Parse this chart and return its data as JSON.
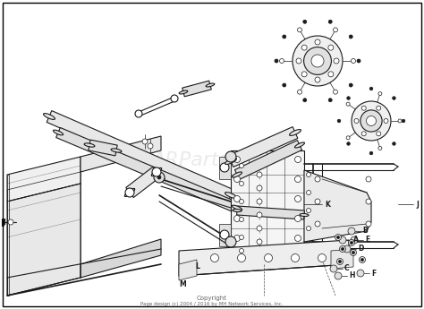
{
  "background_color": "#ffffff",
  "border_color": "#000000",
  "watermark_text": "ARParts",
  "copyright_line1": "Copyright",
  "copyright_line2": "Page design (c) 2004 / 2016 by MH Network Services, Inc.",
  "fig_width": 4.74,
  "fig_height": 3.45,
  "dpi": 100,
  "main_color": "#1a1a1a",
  "light_gray": "#c8c8c8",
  "mid_gray": "#888888",
  "lw_main": 0.8,
  "lw_thick": 1.2,
  "lw_thin": 0.5
}
